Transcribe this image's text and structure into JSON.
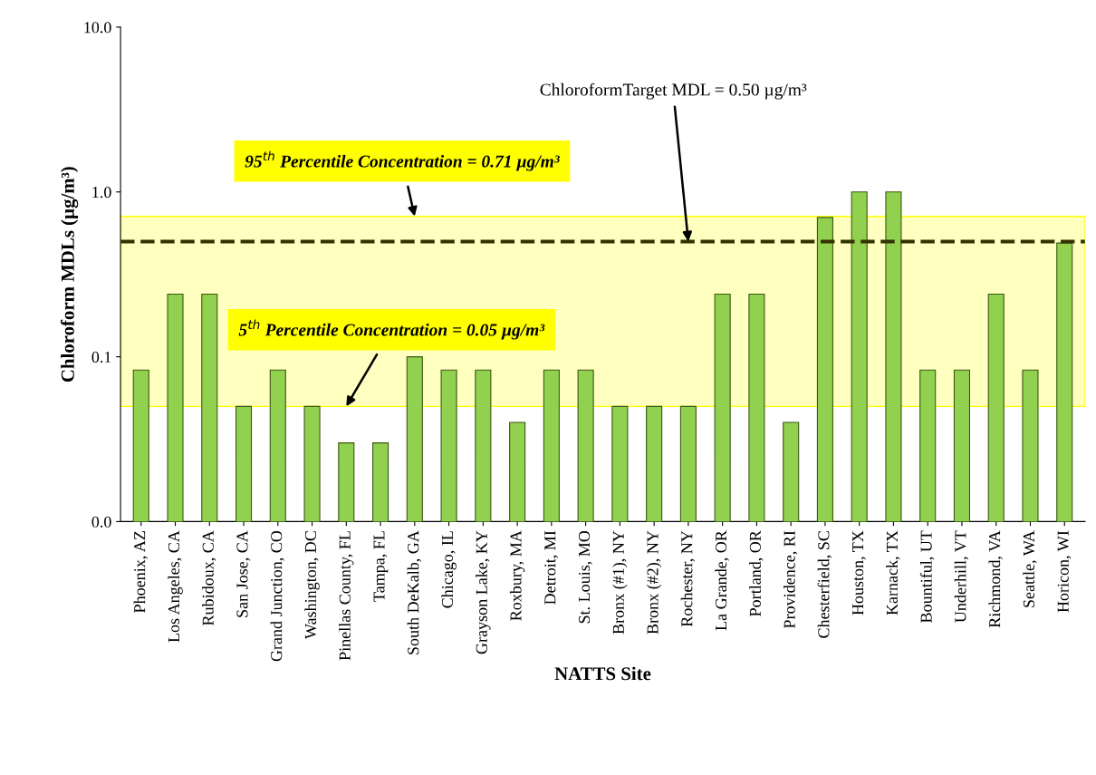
{
  "chart_data": {
    "type": "bar",
    "xlabel": "NATTS Site",
    "ylabel": "Chloroform MDLs (µg/m³)",
    "categories": [
      "Phoenix, AZ",
      "Los Angeles, CA",
      "Rubidoux, CA",
      "San Jose, CA",
      "Grand Junction, CO",
      "Washington, DC",
      "Pinellas County, FL",
      "Tampa, FL",
      "South DeKalb, GA",
      "Chicago, IL",
      "Grayson Lake, KY",
      "Roxbury, MA",
      "Detroit, MI",
      "St. Louis, MO",
      "Bronx (#1), NY",
      "Bronx (#2), NY",
      "Rochester, NY",
      "La Grande, OR",
      "Portland, OR",
      "Providence, RI",
      "Chesterfield, SC",
      "Houston, TX",
      "Karnack, TX",
      "Bountiful, UT",
      "Underhill, VT",
      "Richmond, VA",
      "Seattle, WA",
      "Horicon, WI"
    ],
    "values": [
      0.083,
      0.24,
      0.24,
      0.05,
      0.083,
      0.05,
      0.03,
      0.03,
      0.1,
      0.083,
      0.083,
      0.04,
      0.083,
      0.083,
      0.05,
      0.05,
      0.05,
      0.24,
      0.24,
      0.04,
      0.7,
      1.0,
      1.0,
      0.083,
      0.083,
      0.24,
      0.083,
      0.49
    ],
    "color": "#92d050",
    "log": "y",
    "ylim": [
      0.01,
      10
    ],
    "yticks": [
      {
        "value": 0.01,
        "label": "0.0"
      },
      {
        "value": 0.1,
        "label": "0.1"
      },
      {
        "value": 1,
        "label": "1.0"
      },
      {
        "value": 10,
        "label": "10.0"
      }
    ],
    "grid": false,
    "bands": [
      {
        "axis": "y",
        "from": 0.05,
        "to": 0.71,
        "color": "#ffff00"
      }
    ],
    "ref_lines": [
      {
        "axis": "y",
        "value": 0.5,
        "color": "#333300",
        "line_style": "dashed"
      }
    ],
    "annotations": [
      {
        "text": "95$^{th}$ Percentile Concentration = 0.71 µg/m³",
        "x": "South DeKalb, GA",
        "y": 0.71
      },
      {
        "text": "5$^{th}$ Percentile Concentration = 0.05 µg/m³",
        "x": "Pinellas County, FL",
        "y": 0.05
      },
      {
        "text": "ChloroformTarget MDL = 0.50 µg/m³",
        "x": "Rochester, NY",
        "y": 0.5
      }
    ]
  }
}
